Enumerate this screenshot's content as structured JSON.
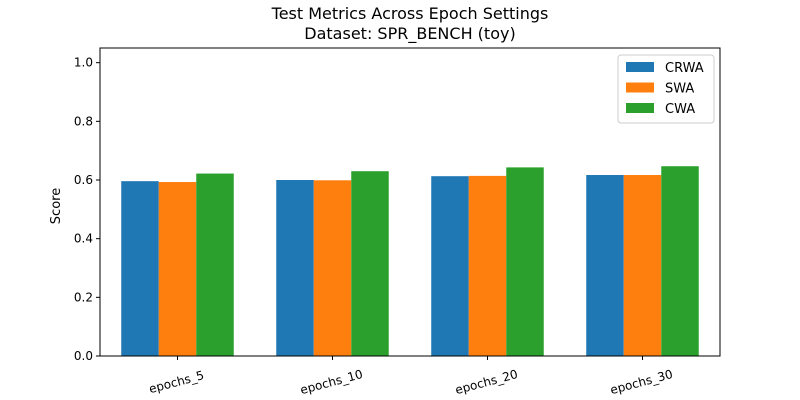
{
  "chart_data": {
    "type": "bar",
    "title": "Test Metrics Across Epoch Settings",
    "subtitle": "Dataset: SPR_BENCH (toy)",
    "xlabel": "",
    "ylabel": "Score",
    "ylim": [
      0,
      1.05
    ],
    "yticks": [
      "0.0",
      "0.2",
      "0.4",
      "0.6",
      "0.8",
      "1.0"
    ],
    "categories": [
      "epochs_5",
      "epochs_10",
      "epochs_20",
      "epochs_30"
    ],
    "series": [
      {
        "name": "CRWA",
        "color": "#1f77b4",
        "values": [
          0.596,
          0.6,
          0.613,
          0.617
        ]
      },
      {
        "name": "SWA",
        "color": "#ff7f0e",
        "values": [
          0.593,
          0.599,
          0.614,
          0.617
        ]
      },
      {
        "name": "CWA",
        "color": "#2ca02c",
        "values": [
          0.622,
          0.63,
          0.643,
          0.647
        ]
      }
    ],
    "legend_position": "top-right",
    "grid": false
  }
}
